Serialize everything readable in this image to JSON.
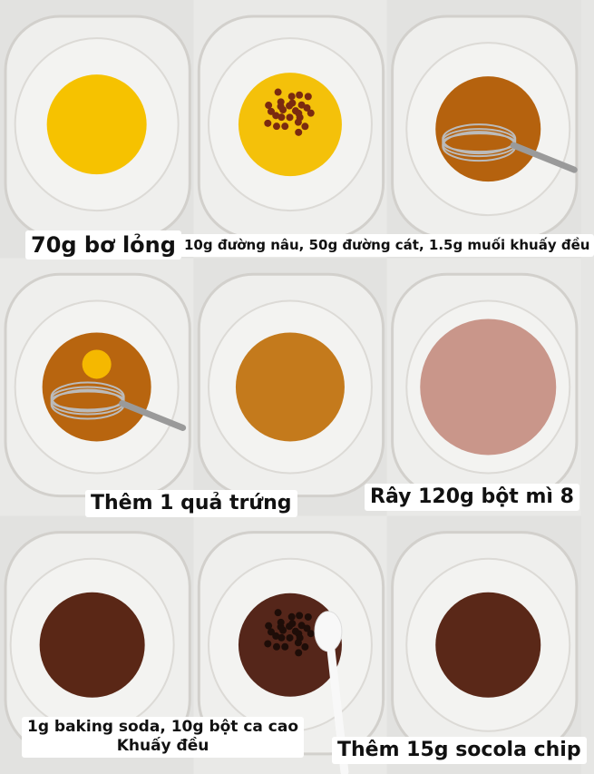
{
  "captions": [
    {
      "lines": [
        "70g bơ lỏng"
      ]
    },
    {
      "lines": [
        "10g đường nâu, 50g đường cát, 1.5g muối khuấy đều"
      ]
    },
    {
      "lines": [
        "Thêm 1 quả trứng"
      ]
    },
    {
      "lines": [
        "Rây 120g bột mì 8"
      ]
    },
    {
      "lines": [
        "1g baking soda, 10g bột ca cao",
        "Khuấy đều"
      ]
    },
    {
      "lines": [
        "Thêm 15g socola chip"
      ]
    }
  ]
}
